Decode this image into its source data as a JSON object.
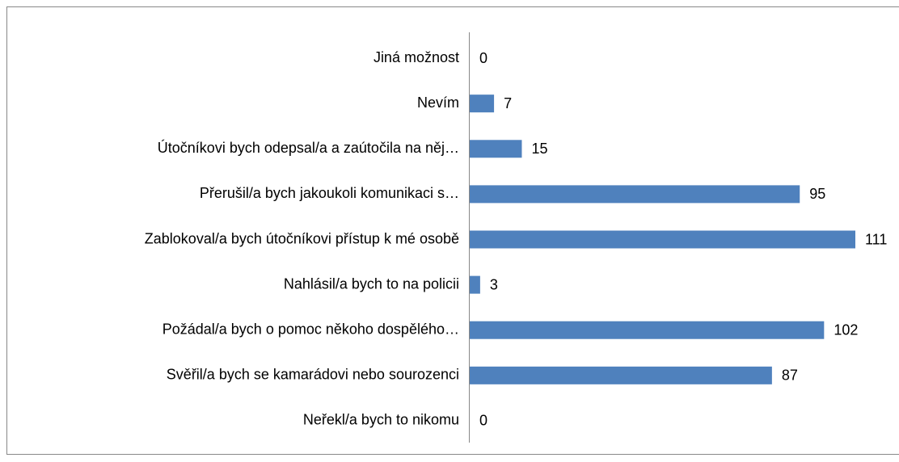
{
  "chart_data": {
    "type": "bar",
    "orientation": "horizontal",
    "categories": [
      "Jiná možnost",
      "Nevím",
      "Útočníkovi bych odepsal/a a zaútočila na něj…",
      "Přerušil/a bych jakoukoli komunikaci s…",
      "Zablokoval/a bych útočníkovi přístup k mé osobě",
      "Nahlásil/a bych to na policii",
      "Požádal/a bych o pomoc někoho dospělého…",
      "Svěřil/a bych se kamarádovi nebo sourozenci",
      "Neřekl/a bych to nikomu"
    ],
    "values": [
      0,
      7,
      15,
      95,
      111,
      3,
      102,
      87,
      0
    ],
    "color": "#4f81bd"
  }
}
